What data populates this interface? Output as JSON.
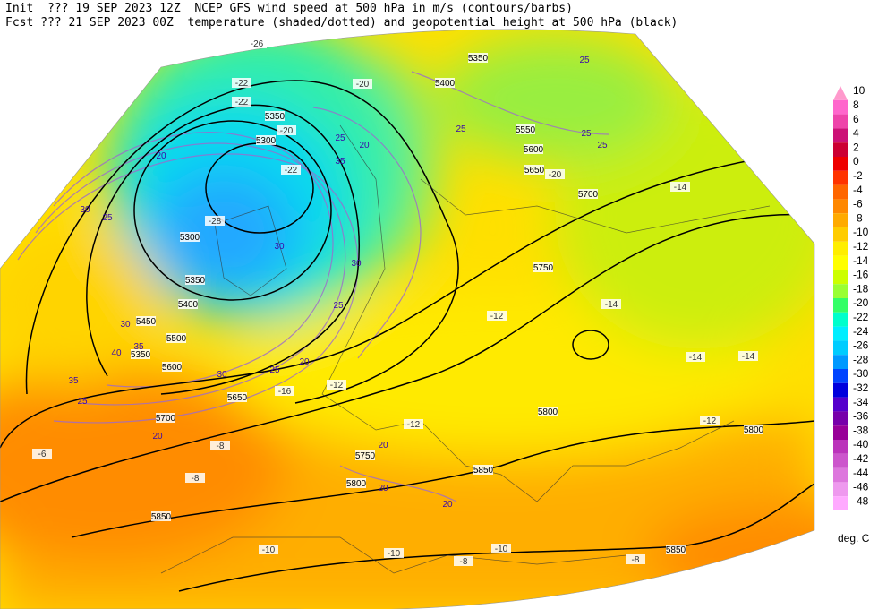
{
  "header": {
    "line1": "Init  ??? 19 SEP 2023 12Z  NCEP GFS wind speed at 500 hPa in m/s (contours/barbs)",
    "line2": "Fcst ??? 21 SEP 2023 00Z  temperature (shaded/dotted) and geopotential height at 500 hPa (black)"
  },
  "colorbar": {
    "unit": "deg. C",
    "entries": [
      {
        "label": 10,
        "color": "#ff99cc"
      },
      {
        "label": 8,
        "color": "#ff66cc"
      },
      {
        "label": 6,
        "color": "#ee44aa"
      },
      {
        "label": 4,
        "color": "#cc1177"
      },
      {
        "label": 2,
        "color": "#cc0033"
      },
      {
        "label": 0,
        "color": "#ee0000"
      },
      {
        "label": -2,
        "color": "#ff3300"
      },
      {
        "label": -4,
        "color": "#ff6600"
      },
      {
        "label": -6,
        "color": "#ff8800"
      },
      {
        "label": -8,
        "color": "#ffaa00"
      },
      {
        "label": -10,
        "color": "#ffcc00"
      },
      {
        "label": -12,
        "color": "#ffee00"
      },
      {
        "label": -14,
        "color": "#ffff00"
      },
      {
        "label": -16,
        "color": "#ccff00"
      },
      {
        "label": -18,
        "color": "#99ff33"
      },
      {
        "label": -20,
        "color": "#33ff66"
      },
      {
        "label": -22,
        "color": "#00ffcc"
      },
      {
        "label": -24,
        "color": "#00eeff"
      },
      {
        "label": -26,
        "color": "#00ccff"
      },
      {
        "label": -28,
        "color": "#0099ff"
      },
      {
        "label": -30,
        "color": "#0044ff"
      },
      {
        "label": -32,
        "color": "#0000dd"
      },
      {
        "label": -34,
        "color": "#5500cc"
      },
      {
        "label": -36,
        "color": "#7700aa"
      },
      {
        "label": -38,
        "color": "#990099"
      },
      {
        "label": -40,
        "color": "#bb33bb"
      },
      {
        "label": -42,
        "color": "#cc55cc"
      },
      {
        "label": -44,
        "color": "#dd77dd"
      },
      {
        "label": -46,
        "color": "#ee99ee"
      },
      {
        "label": -48,
        "color": "#ffaaff"
      }
    ]
  },
  "height_labels": [
    "5350",
    "5300",
    "5300",
    "5350",
    "5400",
    "5450",
    "5500",
    "5350",
    "5600",
    "5650",
    "5700",
    "5750",
    "5800",
    "5850",
    "5350",
    "5400",
    "5550",
    "5600",
    "5650",
    "5700",
    "5750",
    "5800",
    "5800",
    "5850",
    "5850"
  ],
  "temperature_labels": [
    "-26",
    "-22",
    "-20",
    "-22",
    "-20",
    "-22",
    "-28",
    "-12",
    "-14",
    "-14",
    "-14",
    "-12",
    "-16",
    "-12",
    "-8",
    "-6",
    "-8",
    "-10",
    "-10",
    "-8",
    "-8",
    "-10",
    "-12",
    "-14",
    "-20"
  ],
  "wind_labels": [
    "25",
    "20",
    "35",
    "30",
    "25",
    "30",
    "30",
    "30",
    "35",
    "40",
    "35",
    "25",
    "30",
    "20",
    "25",
    "20",
    "20",
    "20",
    "25",
    "25",
    "25",
    "25",
    "20",
    "20",
    "25"
  ]
}
